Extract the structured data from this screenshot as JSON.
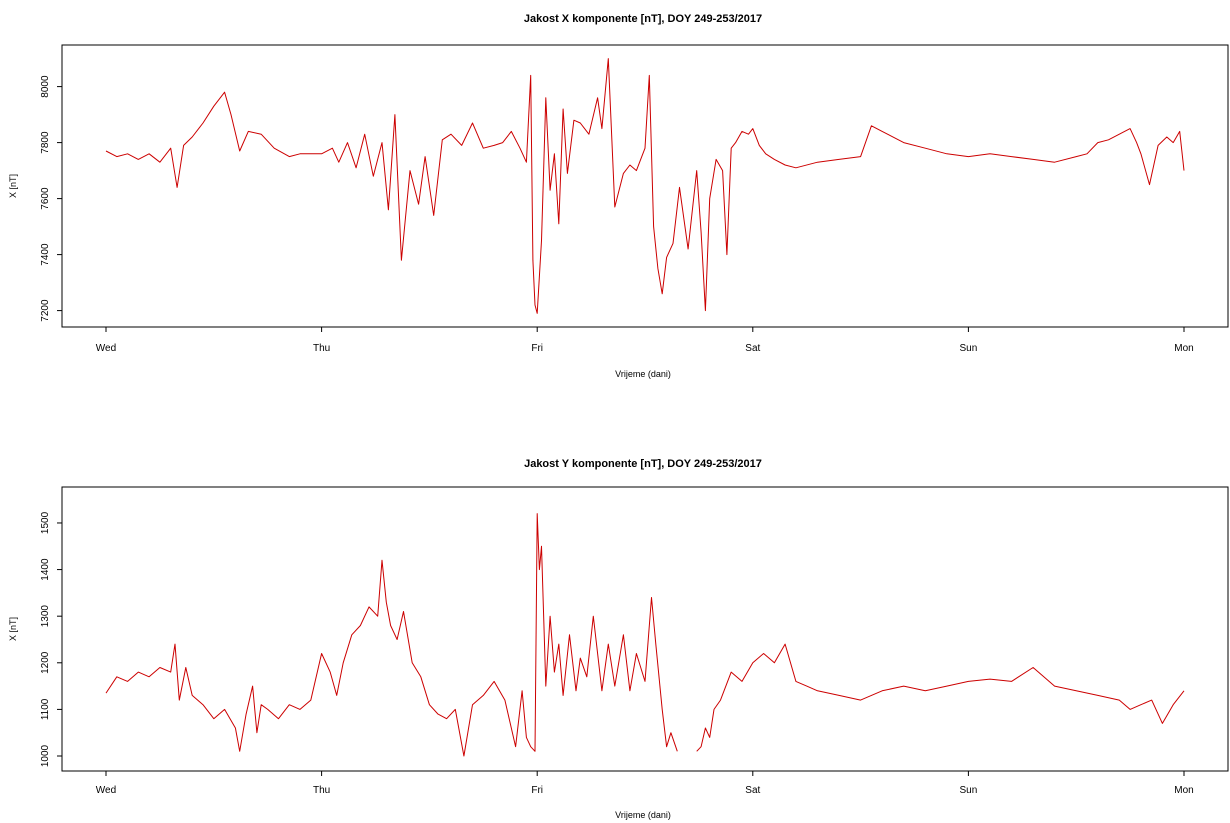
{
  "chart_data": [
    {
      "type": "line",
      "title": "Jakost X komponente [nT], DOY 249-253/2017",
      "xlabel": "Vrijeme (dani)",
      "ylabel": "X [nT]",
      "x_ticks": [
        "Wed",
        "Thu",
        "Fri",
        "Sat",
        "Sun",
        "Mon"
      ],
      "xlim": [
        0,
        5.1
      ],
      "ylim": [
        7170,
        8120
      ],
      "y_ticks": [
        7200,
        7400,
        7600,
        7800,
        8000
      ],
      "grid": false,
      "color": "#cc0000",
      "series": [
        {
          "x": [
            0,
            0.05,
            0.1,
            0.15,
            0.2,
            0.25,
            0.3,
            0.33,
            0.36,
            0.4,
            0.45,
            0.5,
            0.55,
            0.58,
            0.62,
            0.66,
            0.72,
            0.78,
            0.85,
            0.9,
            0.95,
            1.0,
            1.05,
            1.08,
            1.12,
            1.16,
            1.2,
            1.24,
            1.28,
            1.31,
            1.34,
            1.37,
            1.41,
            1.45,
            1.48,
            1.52,
            1.56,
            1.6,
            1.65,
            1.7,
            1.75,
            1.8,
            1.84,
            1.88,
            1.92,
            1.95,
            1.97,
            1.98,
            1.99,
            2.0,
            2.02,
            2.04,
            2.06,
            2.08,
            2.1,
            2.12,
            2.14,
            2.17,
            2.2,
            2.24,
            2.28,
            2.3,
            2.33,
            2.36,
            2.4,
            2.43,
            2.46,
            2.5,
            2.52,
            2.54,
            2.56,
            2.58,
            2.6,
            2.63,
            2.66,
            2.7,
            2.74,
            2.76,
            2.78,
            2.8,
            2.83,
            2.86,
            2.88,
            2.9,
            2.92,
            2.95,
            2.98,
            3.0,
            3.03,
            3.06,
            3.1,
            3.15,
            3.2,
            3.3,
            3.4,
            3.5,
            3.55,
            3.6,
            3.7,
            3.8,
            3.9,
            4.0,
            4.1,
            4.2,
            4.3,
            4.4,
            4.5,
            4.55,
            4.6,
            4.65,
            4.7,
            4.75,
            4.78,
            4.8,
            4.84,
            4.88,
            4.92,
            4.95,
            4.98,
            5.0
          ],
          "y": [
            7770,
            7750,
            7760,
            7740,
            7760,
            7730,
            7780,
            7640,
            7790,
            7820,
            7870,
            7930,
            7980,
            7900,
            7770,
            7840,
            7830,
            7780,
            7750,
            7760,
            7760,
            7760,
            7780,
            7730,
            7800,
            7710,
            7830,
            7680,
            7800,
            7560,
            7900,
            7380,
            7700,
            7580,
            7750,
            7540,
            7810,
            7830,
            7790,
            7870,
            7780,
            7790,
            7800,
            7840,
            7780,
            7730,
            8040,
            7380,
            7220,
            7190,
            7450,
            7960,
            7630,
            7760,
            7510,
            7920,
            7690,
            7880,
            7870,
            7830,
            7960,
            7850,
            8100,
            7570,
            7690,
            7720,
            7700,
            7780,
            8040,
            7500,
            7350,
            7260,
            7390,
            7440,
            7640,
            7420,
            7700,
            7480,
            7200,
            7600,
            7740,
            7700,
            7400,
            7780,
            7800,
            7840,
            7830,
            7850,
            7790,
            7760,
            7740,
            7720,
            7710,
            7730,
            7740,
            7750,
            7860,
            7840,
            7800,
            7780,
            7760,
            7750,
            7760,
            7750,
            7740,
            7730,
            7750,
            7760,
            7800,
            7810,
            7830,
            7850,
            7800,
            7760,
            7650,
            7790,
            7820,
            7800,
            7840,
            7700
          ]
        }
      ]
    },
    {
      "type": "line",
      "title": "Jakost Y komponente [nT], DOY 249-253/2017",
      "xlabel": "Vrijeme (dani)",
      "ylabel": "X [nT]",
      "x_ticks": [
        "Wed",
        "Thu",
        "Fri",
        "Sat",
        "Sun",
        "Mon"
      ],
      "xlim": [
        0,
        5.1
      ],
      "ylim": [
        985,
        1560
      ],
      "y_ticks": [
        1000,
        1100,
        1200,
        1300,
        1400,
        1500
      ],
      "grid": false,
      "color": "#cc0000",
      "series": [
        {
          "x": [
            0,
            0.05,
            0.1,
            0.15,
            0.2,
            0.25,
            0.3,
            0.32,
            0.34,
            0.37,
            0.4,
            0.45,
            0.5,
            0.55,
            0.6,
            0.62,
            0.65,
            0.68,
            0.7,
            0.72,
            0.75,
            0.8,
            0.85,
            0.9,
            0.95,
            1.0,
            1.04,
            1.07,
            1.1,
            1.14,
            1.18,
            1.22,
            1.26,
            1.28,
            1.3,
            1.32,
            1.35,
            1.38,
            1.42,
            1.46,
            1.5,
            1.54,
            1.58,
            1.62,
            1.66,
            1.7,
            1.75,
            1.8,
            1.85,
            1.9,
            1.93,
            1.95,
            1.97,
            1.99,
            2.0,
            2.01,
            2.02,
            2.04,
            2.06,
            2.08,
            2.1,
            2.12,
            2.15,
            2.18,
            2.2,
            2.23,
            2.26,
            2.3,
            2.33,
            2.36,
            2.4,
            2.43,
            2.46,
            2.5,
            2.53,
            2.55,
            2.58,
            2.6,
            2.62,
            2.65,
            2.68,
            2.7,
            2.72,
            2.74,
            2.76,
            2.78,
            2.8,
            2.82,
            2.85,
            2.9,
            2.95,
            3.0,
            3.05,
            3.1,
            3.15,
            3.2,
            3.25,
            3.3,
            3.4,
            3.5,
            3.6,
            3.7,
            3.8,
            3.9,
            4.0,
            4.1,
            4.2,
            4.3,
            4.4,
            4.5,
            4.6,
            4.7,
            4.75,
            4.8,
            4.85,
            4.9,
            4.95,
            5.0
          ],
          "y": [
            1135,
            1170,
            1160,
            1180,
            1170,
            1190,
            1180,
            1240,
            1120,
            1190,
            1130,
            1110,
            1080,
            1100,
            1060,
            1010,
            1090,
            1150,
            1050,
            1110,
            1100,
            1080,
            1110,
            1100,
            1120,
            1220,
            1180,
            1130,
            1200,
            1260,
            1280,
            1320,
            1300,
            1420,
            1330,
            1280,
            1250,
            1310,
            1200,
            1170,
            1110,
            1090,
            1080,
            1100,
            1000,
            1110,
            1130,
            1160,
            1120,
            1020,
            1140,
            1040,
            1020,
            1010,
            1520,
            1400,
            1450,
            1150,
            1300,
            1180,
            1240,
            1130,
            1260,
            1140,
            1210,
            1170,
            1300,
            1140,
            1240,
            1150,
            1260,
            1140,
            1220,
            1160,
            1340,
            1240,
            1100,
            1020,
            1050,
            1010,
            null,
            null,
            null,
            1010,
            1020,
            1060,
            1040,
            1100,
            1120,
            1180,
            1160,
            1200,
            1220,
            1200,
            1240,
            1160,
            1150,
            1140,
            1130,
            1120,
            1140,
            1150,
            1140,
            1150,
            1160,
            1165,
            1160,
            1190,
            1150,
            1140,
            1130,
            1120,
            1100,
            1110,
            1120,
            1070,
            1110,
            1140
          ]
        }
      ]
    }
  ]
}
